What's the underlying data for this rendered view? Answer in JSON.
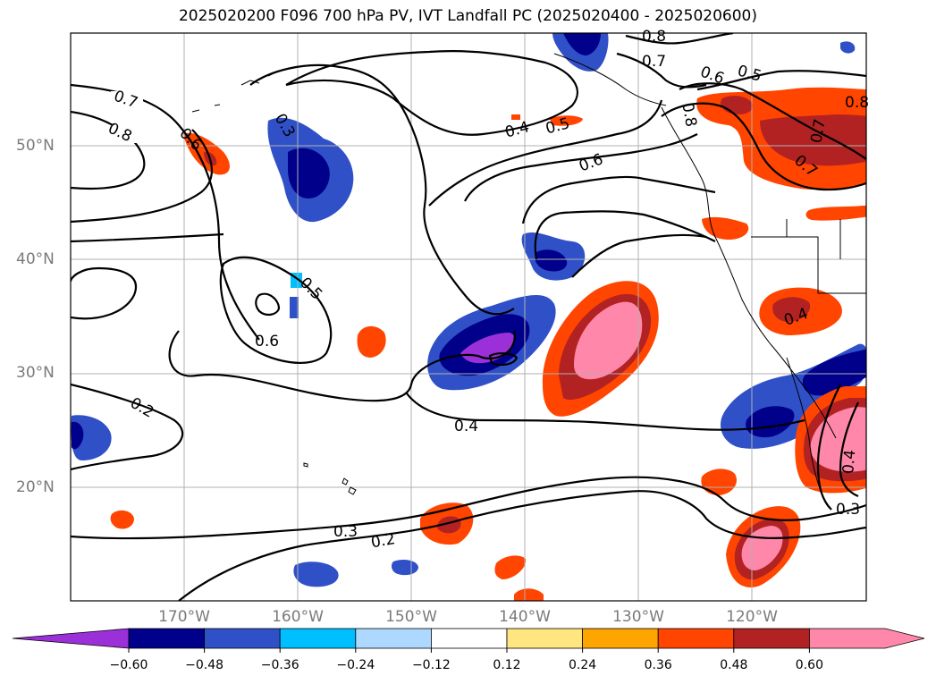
{
  "title": "2025020200 F096 700 hPa PV, IVT Landfall PC (2025020400 - 2025020600)",
  "lat_labels": [
    "50°N",
    "40°N",
    "30°N",
    "20°N"
  ],
  "lon_labels": [
    "170°W",
    "160°W",
    "150°W",
    "140°W",
    "130°W",
    "120°W"
  ],
  "contour_labels": [
    "0.7",
    "0.8",
    "0.6",
    "0.3",
    "0.5",
    "0.6",
    "0.4",
    "0.5",
    "0.6",
    "0.8",
    "0.7",
    "0.6",
    "0.5",
    "0.8",
    "0.8",
    "0.7",
    "0.7",
    "0.4",
    "0.2",
    "0.4",
    "0.3",
    "0.2",
    "0.4",
    "0.3"
  ],
  "colorbar": {
    "ticks": [
      "−0.60",
      "−0.48",
      "−0.36",
      "−0.24",
      "−0.12",
      "0.12",
      "0.24",
      "0.36",
      "0.48",
      "0.60"
    ],
    "colors": [
      "#9b30d9",
      "#00008b",
      "#3050c8",
      "#00bfff",
      "#add8ff",
      "#ffffff",
      "#ffe680",
      "#ffa500",
      "#ff4500",
      "#b22222",
      "#ff88aa",
      "#ff88aa"
    ]
  }
}
